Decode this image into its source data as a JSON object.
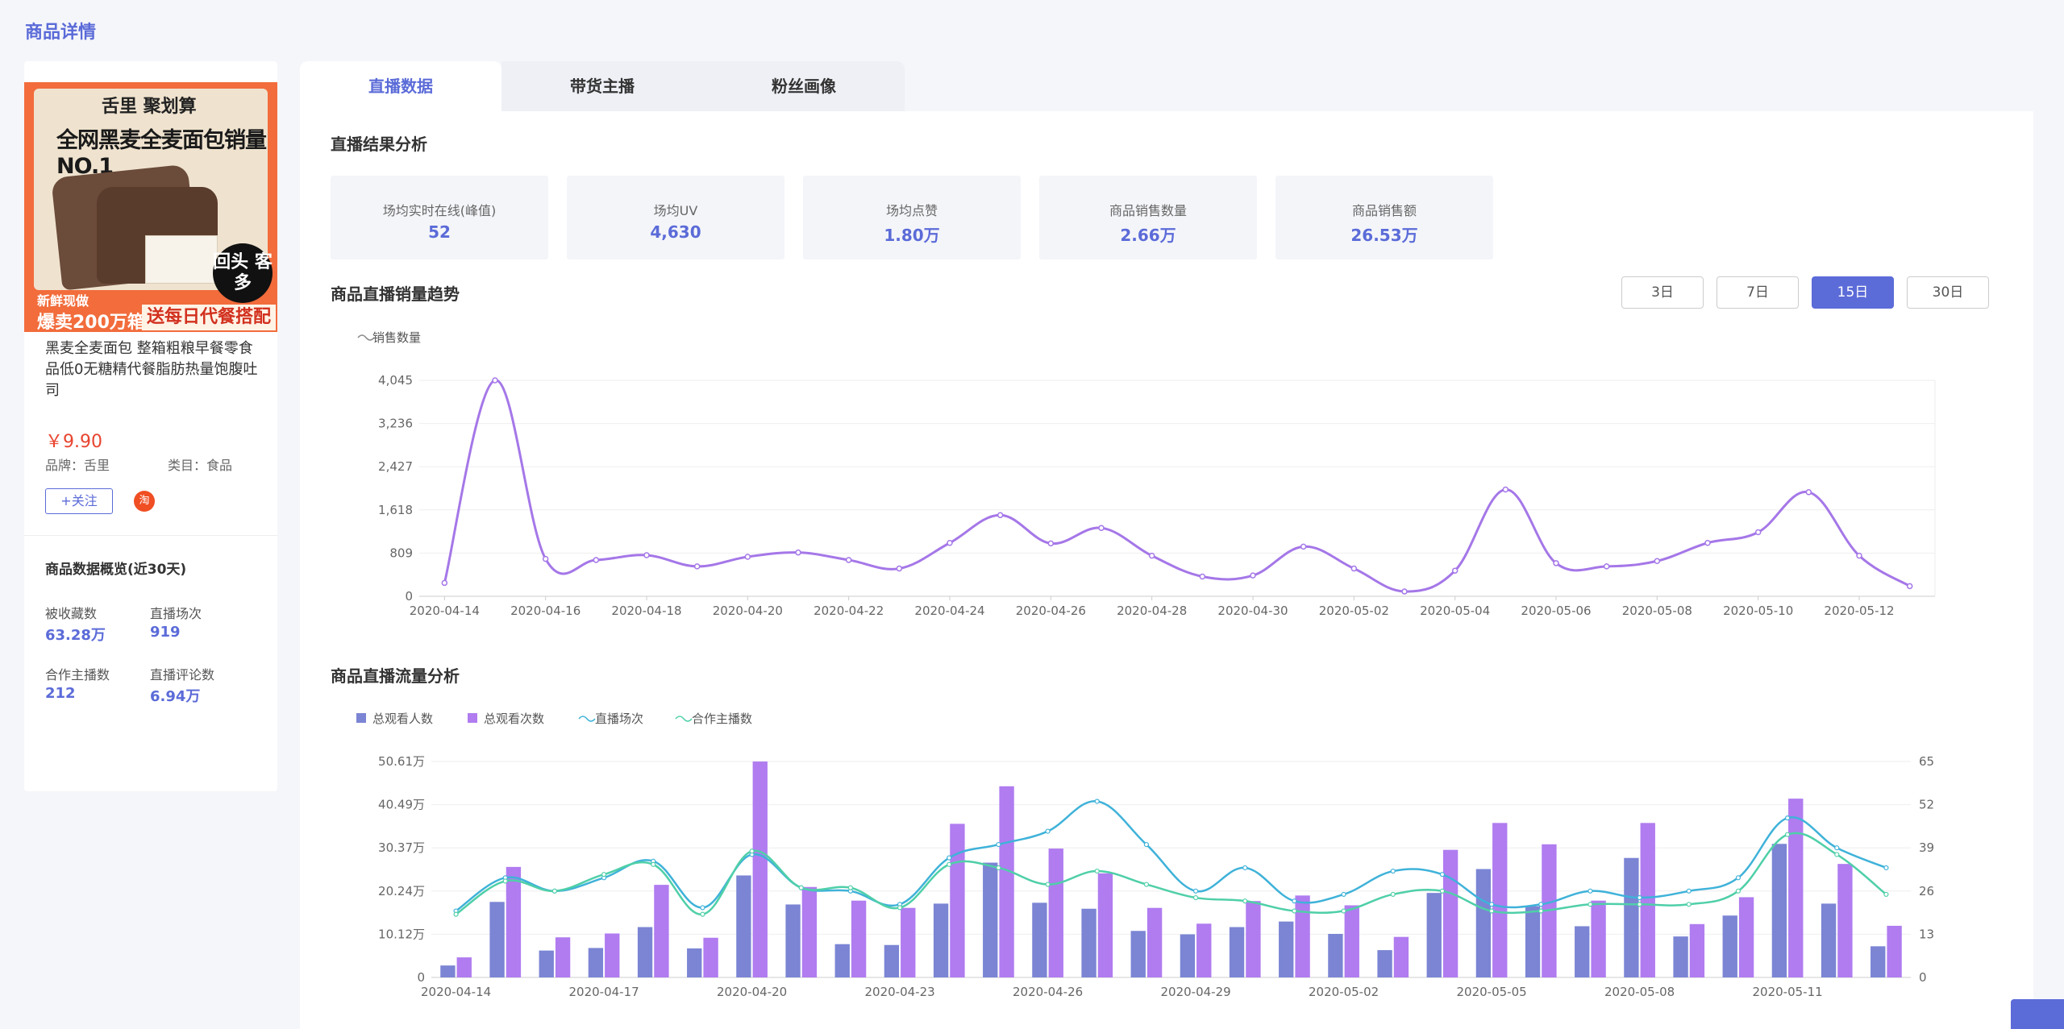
{
  "page": {
    "title": "商品详情"
  },
  "product": {
    "image": {
      "logo_text": "舌里 聚划算",
      "headline": "全网黑麦全麦面包销量NO.1",
      "badge": "回头 客多",
      "strip_left_top": "新鲜现做",
      "strip_left_bottom": "爆卖200万箱",
      "strip_right": "送每日代餐搭配"
    },
    "name": "黑麦全麦面包 整箱粗粮早餐零食品低0无糖精代餐脂肪热量饱腹吐司",
    "price": "￥9.90",
    "brand": "品牌：舌里",
    "category": "类目：食品",
    "follow_label": "+关注",
    "shop_icon": "淘"
  },
  "overview": {
    "title": "商品数据概览(近30天)",
    "stats": [
      {
        "label": "被收藏数",
        "value": "63.28万"
      },
      {
        "label": "直播场次",
        "value": "919"
      },
      {
        "label": "合作主播数",
        "value": "212"
      },
      {
        "label": "直播评论数",
        "value": "6.94万"
      }
    ]
  },
  "tabs": [
    {
      "label": "直播数据",
      "active": true
    },
    {
      "label": "带货主播",
      "active": false
    },
    {
      "label": "粉丝画像",
      "active": false
    }
  ],
  "result_section": {
    "title": "直播结果分析",
    "kpis": [
      {
        "label": "场均实时在线(峰值)",
        "value": "52"
      },
      {
        "label": "场均UV",
        "value": "4,630"
      },
      {
        "label": "场均点赞",
        "value": "1.80万"
      },
      {
        "label": "商品销售数量",
        "value": "2.66万"
      },
      {
        "label": "商品销售额",
        "value": "26.53万"
      }
    ]
  },
  "trend_section": {
    "title": "商品直播销量趋势",
    "ranges": [
      {
        "label": "3日",
        "active": false
      },
      {
        "label": "7日",
        "active": false
      },
      {
        "label": "15日",
        "active": true
      },
      {
        "label": "30日",
        "active": false
      }
    ]
  },
  "traffic_section": {
    "title": "商品直播流量分析"
  },
  "colors": {
    "accent": "#5b6bd8",
    "line_purple": "#a577e8",
    "bar_blue": "#7b85d4",
    "bar_purple": "#b07cf0",
    "line_cyan": "#3fb2d9",
    "line_green": "#4fcfa8"
  },
  "chart_data": [
    {
      "type": "line",
      "title": "",
      "legend": [
        "销售数量"
      ],
      "legend_position": "top-left",
      "y_ticks": [
        "0",
        "809",
        "1,618",
        "2,427",
        "3,236",
        "4,045"
      ],
      "ylim": [
        0,
        4045
      ],
      "x_tick_labels": [
        "2020-04-14",
        "2020-04-16",
        "2020-04-18",
        "2020-04-20",
        "2020-04-22",
        "2020-04-24",
        "2020-04-26",
        "2020-04-28",
        "2020-04-30",
        "2020-05-02",
        "2020-05-04",
        "2020-05-06",
        "2020-05-08",
        "2020-05-10",
        "2020-05-12"
      ],
      "x": [
        "2020-04-14",
        "2020-04-15",
        "2020-04-16",
        "2020-04-17",
        "2020-04-18",
        "2020-04-19",
        "2020-04-20",
        "2020-04-21",
        "2020-04-22",
        "2020-04-23",
        "2020-04-24",
        "2020-04-25",
        "2020-04-26",
        "2020-04-27",
        "2020-04-28",
        "2020-04-29",
        "2020-04-30",
        "2020-05-01",
        "2020-05-02",
        "2020-05-03",
        "2020-05-04",
        "2020-05-05",
        "2020-05-06",
        "2020-05-07",
        "2020-05-08",
        "2020-05-09",
        "2020-05-10",
        "2020-05-11",
        "2020-05-12",
        "2020-05-13"
      ],
      "series": [
        {
          "name": "销售数量",
          "values": [
            250,
            4045,
            700,
            680,
            770,
            560,
            740,
            820,
            680,
            520,
            1000,
            1520,
            990,
            1280,
            760,
            370,
            390,
            930,
            520,
            90,
            480,
            2000,
            620,
            560,
            660,
            1000,
            1200,
            1950,
            760,
            190
          ]
        }
      ]
    },
    {
      "type": "bar",
      "title": "",
      "legend": [
        "总观看人数",
        "总观看次数",
        "直播场次",
        "合作主播数"
      ],
      "legend_position": "top-left",
      "y_left_ticks": [
        "0",
        "10.12万",
        "20.24万",
        "30.37万",
        "40.49万",
        "50.61万"
      ],
      "ylim_left": [
        0,
        50.61
      ],
      "y_right_ticks": [
        "0",
        "13",
        "26",
        "39",
        "52",
        "65"
      ],
      "ylim_right": [
        0,
        65
      ],
      "x_tick_labels": [
        "2020-04-14",
        "2020-04-17",
        "2020-04-20",
        "2020-04-23",
        "2020-04-26",
        "2020-04-29",
        "2020-05-02",
        "2020-05-05",
        "2020-05-08",
        "2020-05-11"
      ],
      "x": [
        "2020-04-14",
        "2020-04-15",
        "2020-04-16",
        "2020-04-17",
        "2020-04-18",
        "2020-04-19",
        "2020-04-20",
        "2020-04-21",
        "2020-04-22",
        "2020-04-23",
        "2020-04-24",
        "2020-04-25",
        "2020-04-26",
        "2020-04-27",
        "2020-04-28",
        "2020-04-29",
        "2020-04-30",
        "2020-05-01",
        "2020-05-02",
        "2020-05-03",
        "2020-05-04",
        "2020-05-05",
        "2020-05-06",
        "2020-05-07",
        "2020-05-08",
        "2020-05-09",
        "2020-05-10",
        "2020-05-11",
        "2020-05-12",
        "2020-05-13"
      ],
      "series": [
        {
          "name": "总观看人数",
          "axis": "left",
          "kind": "bar",
          "values": [
            2.8,
            17.7,
            6.3,
            6.9,
            11.8,
            6.8,
            23.9,
            17.1,
            7.8,
            7.6,
            17.3,
            26.9,
            17.5,
            16.1,
            10.9,
            10.1,
            11.8,
            13.1,
            10.2,
            6.4,
            19.8,
            25.4,
            16.7,
            12.0,
            28.0,
            9.6,
            14.5,
            31.3,
            17.3,
            7.3
          ]
        },
        {
          "name": "总观看次数",
          "axis": "left",
          "kind": "bar",
          "values": [
            4.7,
            25.9,
            9.4,
            10.3,
            21.7,
            9.3,
            50.6,
            21.2,
            18.0,
            16.3,
            36.0,
            44.8,
            30.2,
            24.4,
            16.3,
            12.6,
            17.9,
            19.2,
            16.9,
            9.5,
            29.9,
            36.2,
            31.2,
            18.0,
            36.2,
            12.5,
            18.8,
            41.9,
            26.6,
            12.1
          ]
        },
        {
          "name": "直播场次",
          "axis": "right",
          "kind": "line",
          "values": [
            20,
            30,
            26,
            30,
            35,
            21,
            37,
            27,
            26,
            22,
            36,
            40,
            44,
            53,
            40,
            26,
            33,
            23,
            25,
            32,
            31,
            22,
            22,
            26,
            24,
            26,
            30,
            48,
            39,
            33
          ]
        },
        {
          "name": "合作主播数",
          "axis": "right",
          "kind": "line",
          "values": [
            19,
            29,
            26,
            31,
            34,
            19,
            38,
            27,
            27,
            21,
            34,
            33,
            28,
            32,
            28,
            24,
            23,
            20,
            20,
            25,
            26,
            20,
            20,
            22,
            22,
            22,
            26,
            43,
            37,
            25
          ]
        }
      ]
    }
  ]
}
